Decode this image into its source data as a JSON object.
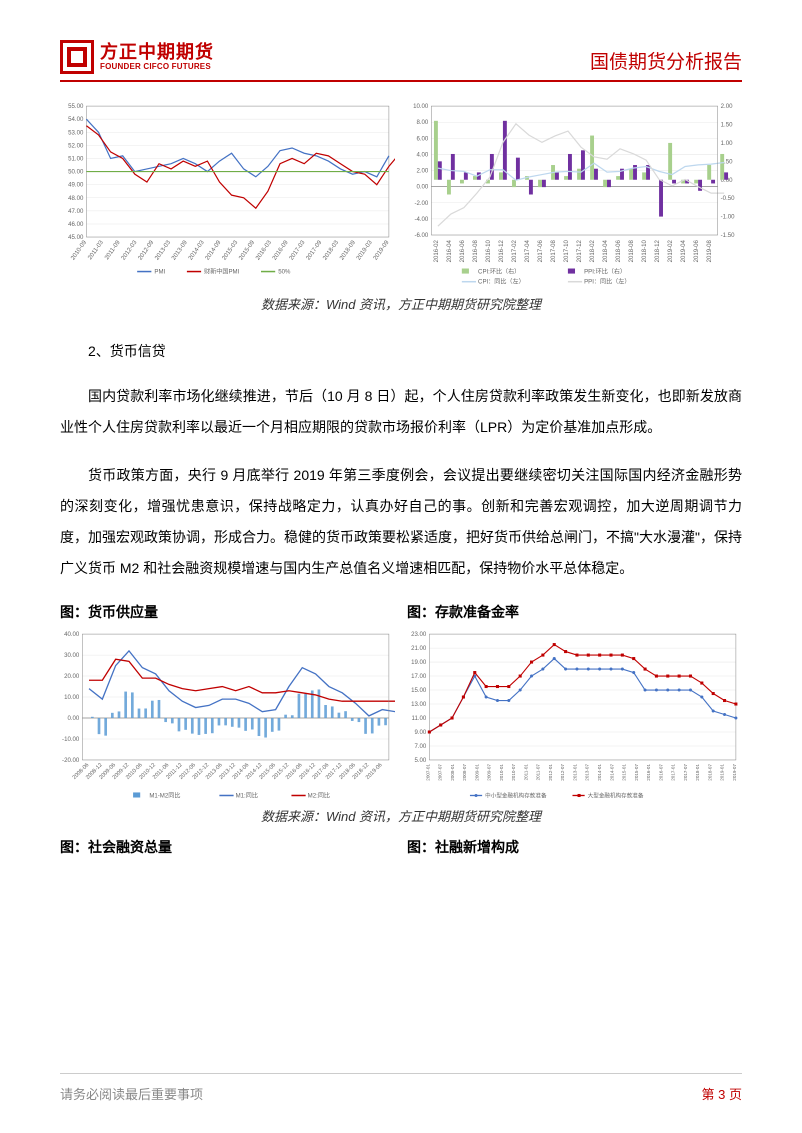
{
  "header": {
    "logo_cn": "方正中期期货",
    "logo_en": "FOUNDER CIFCO FUTURES",
    "report_title": "国债期货分析报告"
  },
  "source_line": "数据来源：Wind 资讯，方正中期期货研究院整理",
  "section2": {
    "heading": "2、货币信贷",
    "p1": "国内贷款利率市场化继续推进，节后（10 月 8 日）起，个人住房贷款利率政策发生新变化，也即新发放商业性个人住房贷款利率以最近一个月相应期限的贷款市场报价利率（LPR）为定价基准加点形成。",
    "p2": "货币政策方面，央行 9 月底举行 2019 年第三季度例会，会议提出要继续密切关注国际国内经济金融形势的深刻变化，增强忧患意识，保持战略定力，认真办好自己的事。创新和完善宏观调控，加大逆周期调节力度，加强宏观政策协调，形成合力。稳健的货币政策要松紧适度，把好货币供给总闸门，不搞\"大水漫灌\"，保持广义货币 M2 和社会融资规模增速与国内生产总值名义增速相匹配，保持物价水平总体稳定。"
  },
  "chart_pmi": {
    "type": "line",
    "ylim": [
      45,
      55
    ],
    "yticks": [
      45,
      46,
      47,
      48,
      49,
      50,
      51,
      52,
      53,
      54,
      55
    ],
    "xlabels": [
      "2010-09",
      "2011-03",
      "2011-09",
      "2012-03",
      "2012-09",
      "2013-03",
      "2013-09",
      "2014-03",
      "2014-09",
      "2015-03",
      "2015-09",
      "2016-03",
      "2016-09",
      "2017-03",
      "2017-09",
      "2018-03",
      "2018-09",
      "2019-03",
      "2019-09"
    ],
    "series": [
      {
        "name": "PMI",
        "color": "#4472c4",
        "data": [
          54,
          53,
          51,
          51.2,
          50,
          50.2,
          50.4,
          50.6,
          51,
          50.6,
          50,
          50.8,
          51.4,
          50.2,
          49.6,
          50.4,
          51.6,
          51.8,
          51.4,
          51.2,
          50.8,
          50.2,
          49.8,
          50,
          49.6,
          51.2
        ]
      },
      {
        "name": "财新中国PMI",
        "color": "#c00000",
        "data": [
          53.5,
          52.8,
          51.5,
          51,
          49.8,
          49.2,
          50.6,
          50.2,
          50.8,
          50.4,
          50.8,
          49.2,
          48.2,
          48,
          47.2,
          48.5,
          50.6,
          51,
          50.6,
          51.4,
          51.2,
          50.6,
          50,
          49.8,
          49,
          50.4,
          51.5
        ]
      },
      {
        "name": "50%",
        "color": "#70ad47",
        "data_const": 50
      }
    ],
    "bg": "#ffffff",
    "grid_color": "#e8e8e8",
    "axis_color": "#888888",
    "tick_fontsize": 6
  },
  "chart_cpi": {
    "type": "combo",
    "ylim_left": [
      -6,
      10
    ],
    "yticks_left": [
      -6,
      -4,
      -2,
      0,
      2,
      4,
      6,
      8,
      10
    ],
    "ylim_right": [
      -1.5,
      2
    ],
    "yticks_right": [
      -1.5,
      -1,
      -0.5,
      0,
      0.5,
      1,
      1.5,
      2
    ],
    "xlabels": [
      "2016-02",
      "2016-04",
      "2016-06",
      "2016-08",
      "2016-10",
      "2016-12",
      "2017-02",
      "2017-04",
      "2017-06",
      "2017-08",
      "2017-10",
      "2017-12",
      "2018-02",
      "2018-04",
      "2018-06",
      "2018-08",
      "2018-10",
      "2018-12",
      "2019-02",
      "2019-04",
      "2019-06",
      "2019-08"
    ],
    "series_bars": [
      {
        "name": "CPI:环比（右）",
        "color": "#a8d08d",
        "data": [
          1.6,
          -0.4,
          -0.1,
          0.1,
          -0.1,
          0.2,
          -0.2,
          0.1,
          -0.2,
          0.4,
          0.1,
          0.3,
          1.2,
          -0.2,
          0.1,
          0.3,
          0.2,
          0,
          1,
          -0.1,
          -0.1,
          0.4,
          0.7
        ]
      },
      {
        "name": "PPI:环比（右）",
        "color": "#7030a0",
        "data": [
          0.5,
          0.7,
          0.2,
          0.2,
          0.7,
          1.6,
          0.6,
          -0.4,
          -0.2,
          0.2,
          0.7,
          0.8,
          0.3,
          -0.2,
          0.3,
          0.4,
          0.4,
          -1,
          -0.1,
          -0.1,
          -0.3,
          -0.1,
          0.2
        ]
      }
    ],
    "series_lines": [
      {
        "name": "CPI：同比（左）",
        "color": "#bdd7ee",
        "data": [
          2.3,
          2,
          1.9,
          1.3,
          2.1,
          2.1,
          0.8,
          1.2,
          1.5,
          1.8,
          1.9,
          1.8,
          2.9,
          1.8,
          1.9,
          2.3,
          2.5,
          1.9,
          1.5,
          2.5,
          2.7,
          2.8,
          3
        ]
      },
      {
        "name": "PPI：同比（左）",
        "color": "#d9d9d9",
        "data": [
          -4.9,
          -3.4,
          -2.6,
          -0.8,
          1.2,
          5.5,
          7.8,
          6.4,
          5.5,
          6.3,
          6.9,
          4.9,
          3.7,
          3.4,
          4.7,
          4.1,
          3.3,
          0.9,
          0.1,
          0.9,
          0,
          -0.8,
          -0.8
        ]
      }
    ],
    "bg": "#ffffff",
    "grid_color": "#e8e8e8",
    "axis_color": "#888888",
    "tick_fontsize": 6
  },
  "chart_money_title": "图：货币供应量",
  "chart_money": {
    "type": "combo",
    "ylim": [
      -20,
      40
    ],
    "yticks": [
      -20,
      -10,
      0,
      10,
      20,
      30,
      40
    ],
    "xlabels": [
      "2008-06",
      "2008-12",
      "2009-06",
      "2009-12",
      "2010-06",
      "2010-12",
      "2011-06",
      "2011-12",
      "2012-06",
      "2012-12",
      "2013-06",
      "2013-12",
      "2014-06",
      "2014-12",
      "2015-06",
      "2015-12",
      "2016-06",
      "2016-12",
      "2017-06",
      "2017-12",
      "2018-06",
      "2018-12",
      "2019-06"
    ],
    "bar": {
      "name": "M1-M2同比",
      "color": "#5b9bd5",
      "data": [
        0,
        -8,
        3,
        12,
        5,
        8,
        -2,
        -6,
        -8,
        -7,
        -4,
        -4,
        -6,
        -9,
        -6,
        1,
        12,
        13,
        6,
        3,
        -2,
        -7,
        -4,
        -4
      ]
    },
    "lines": [
      {
        "name": "M1:同比",
        "color": "#4472c4",
        "data": [
          14,
          9,
          25,
          32,
          24,
          21,
          13,
          8,
          5,
          6,
          9,
          9,
          7,
          3,
          4,
          15,
          24,
          21,
          15,
          12,
          7,
          1,
          4,
          3
        ]
      },
      {
        "name": "M2:同比",
        "color": "#c00000",
        "data": [
          18,
          18,
          28,
          27,
          19,
          19,
          16,
          14,
          13,
          14,
          15,
          13,
          15,
          12,
          12,
          13,
          12,
          11,
          9,
          8,
          8,
          8,
          8,
          8
        ]
      }
    ],
    "bg": "#ffffff",
    "grid_color": "#e8e8e8",
    "axis_color": "#888888",
    "tick_fontsize": 6
  },
  "chart_rrr_title": "图：存款准备金率",
  "chart_rrr": {
    "type": "line",
    "ylim": [
      5,
      23
    ],
    "yticks": [
      5,
      7,
      9,
      11,
      13,
      15,
      17,
      19,
      21,
      23
    ],
    "xlabels": [
      "2007-01",
      "2007-07",
      "2008-01",
      "2008-07",
      "2009-01",
      "2009-07",
      "2010-01",
      "2010-07",
      "2011-01",
      "2011-07",
      "2012-01",
      "2012-07",
      "2013-01",
      "2013-07",
      "2014-01",
      "2014-07",
      "2015-01",
      "2015-07",
      "2016-01",
      "2016-07",
      "2017-01",
      "2017-07",
      "2018-01",
      "2018-07",
      "2019-01",
      "2019-07"
    ],
    "series": [
      {
        "name": "中小型金融机构存款准备",
        "color": "#4472c4",
        "marker": "circle",
        "data": [
          9,
          10,
          11,
          14,
          17,
          14,
          13.5,
          13.5,
          15,
          17,
          18,
          19.5,
          18,
          18,
          18,
          18,
          18,
          18,
          17.5,
          15,
          15,
          15,
          15,
          15,
          14,
          12,
          11.5,
          11
        ]
      },
      {
        "name": "大型金融机构存款准备",
        "color": "#c00000",
        "marker": "square",
        "data": [
          9,
          10,
          11,
          14,
          17.5,
          15.5,
          15.5,
          15.5,
          17,
          19,
          20,
          21.5,
          20.5,
          20,
          20,
          20,
          20,
          20,
          19.5,
          18,
          17,
          17,
          17,
          17,
          16,
          14.5,
          13.5,
          13
        ]
      }
    ],
    "bg": "#ffffff",
    "grid_color": "#e8e8e8",
    "axis_color": "#888888",
    "tick_fontsize": 5
  },
  "chart_tsf_title": "图：社会融资总量",
  "chart_tsf_new_title": "图：社融新增构成",
  "footer": {
    "disclaimer": "请务必阅读最后重要事项",
    "page": "第 3 页"
  }
}
